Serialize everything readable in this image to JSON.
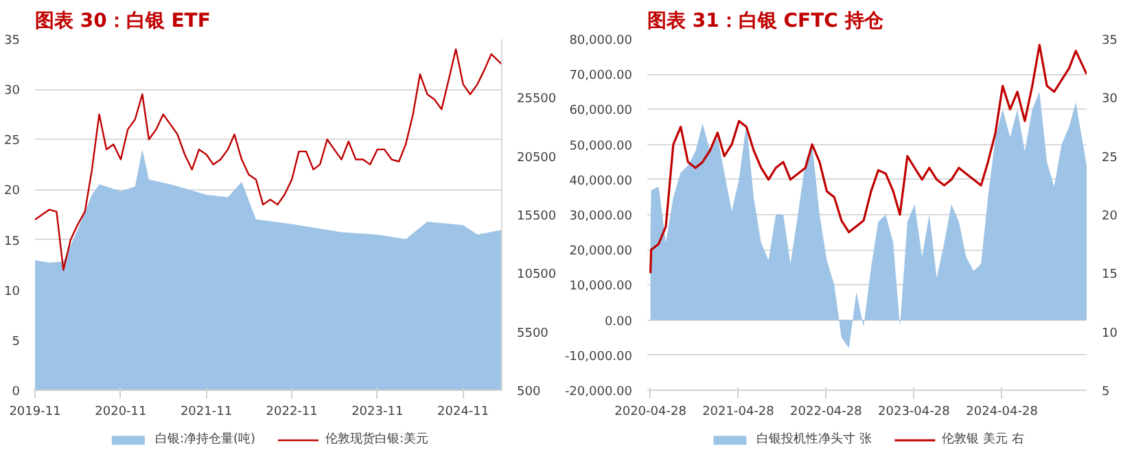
{
  "chart_data": [
    {
      "type": "line",
      "title": "图表 30：白银 ETF",
      "legend": "bottom",
      "grid": "y",
      "xlim": [
        "2019-11-01",
        "2025-04-15"
      ],
      "xticks": [
        "2019-11",
        "2020-11",
        "2021-11",
        "2022-11",
        "2023-11",
        "2024-11"
      ],
      "ylim": [
        0,
        35
      ],
      "yticks": [
        0,
        5,
        10,
        15,
        20,
        25,
        30,
        35
      ],
      "y2lim": [
        500,
        30500
      ],
      "y2ticks": [
        500,
        5500,
        10500,
        15500,
        20500,
        25500
      ],
      "series": [
        {
          "name": "白银:净持仓量(吨)",
          "type": "area",
          "axis": "y2",
          "color": "#9dc3e6",
          "x": [
            "2019-11",
            "2020-01",
            "2020-03",
            "2020-05",
            "2020-07",
            "2020-08",
            "2020-11",
            "2021-01",
            "2021-02",
            "2021-03",
            "2021-06",
            "2021-11",
            "2022-02",
            "2022-04",
            "2022-06",
            "2022-11",
            "2023-06",
            "2023-11",
            "2024-03",
            "2024-06",
            "2024-11",
            "2025-01",
            "2025-04-15"
          ],
          "values": [
            11600,
            11400,
            11500,
            14200,
            17200,
            18100,
            17500,
            17900,
            21100,
            18500,
            18100,
            17200,
            17000,
            18300,
            15100,
            14700,
            14000,
            13800,
            13400,
            14900,
            14600,
            13800,
            14200
          ]
        },
        {
          "name": "伦敦现货白银:美元",
          "type": "line",
          "color": "#c00000",
          "x": [
            "2019-11",
            "2019-12",
            "2020-01",
            "2020-02",
            "2020-03",
            "2020-04",
            "2020-05",
            "2020-06",
            "2020-07",
            "2020-08",
            "2020-09",
            "2020-10",
            "2020-11",
            "2020-12",
            "2021-01",
            "2021-02",
            "2021-03",
            "2021-04",
            "2021-05",
            "2021-06",
            "2021-07",
            "2021-08",
            "2021-09",
            "2021-10",
            "2021-11",
            "2021-12",
            "2022-01",
            "2022-02",
            "2022-03",
            "2022-04",
            "2022-05",
            "2022-06",
            "2022-07",
            "2022-08",
            "2022-09",
            "2022-10",
            "2022-11",
            "2022-12",
            "2023-01",
            "2023-02",
            "2023-03",
            "2023-04",
            "2023-05",
            "2023-06",
            "2023-07",
            "2023-08",
            "2023-09",
            "2023-10",
            "2023-11",
            "2023-12",
            "2024-01",
            "2024-02",
            "2024-03",
            "2024-04",
            "2024-05",
            "2024-06",
            "2024-07",
            "2024-08",
            "2024-09",
            "2024-10",
            "2024-11",
            "2024-12",
            "2025-01",
            "2025-02",
            "2025-03",
            "2025-04-15"
          ],
          "values": [
            17.0,
            17.5,
            18.0,
            17.8,
            12.0,
            15.0,
            16.5,
            17.8,
            22,
            27.5,
            24,
            24.5,
            23,
            26,
            27,
            29.5,
            25,
            26,
            27.5,
            26.5,
            25.5,
            23.5,
            22,
            24,
            23.5,
            22.5,
            23,
            24,
            25.5,
            23,
            21.5,
            21,
            18.5,
            19,
            18.5,
            19.5,
            21,
            23.8,
            23.8,
            22,
            22.5,
            25,
            24,
            23,
            24.8,
            23,
            23,
            22.5,
            24,
            24,
            23,
            22.8,
            24.5,
            27.5,
            31.5,
            29.5,
            29,
            28,
            31,
            34,
            30.5,
            29.5,
            30.5,
            32,
            33.5,
            32.5
          ]
        }
      ]
    },
    {
      "type": "line",
      "title": "图表 31：白银 CFTC 持仓",
      "legend": "bottom",
      "grid": "y",
      "xlim": [
        "2020-04-15",
        "2025-04-15"
      ],
      "xticks": [
        "2020-04-28",
        "2021-04-28",
        "2022-04-28",
        "2023-04-28",
        "2024-04-28"
      ],
      "ylim": [
        -20000,
        80000
      ],
      "yticks": [
        {
          "value": -20000,
          "label": "-20,000.00"
        },
        {
          "value": -10000,
          "label": "-10,000.00"
        },
        {
          "value": 0,
          "label": "0.00"
        },
        {
          "value": 10000,
          "label": "10,000.00"
        },
        {
          "value": 20000,
          "label": "20,000.00"
        },
        {
          "value": 30000,
          "label": "30,000.00"
        },
        {
          "value": 40000,
          "label": "40,000.00"
        },
        {
          "value": 50000,
          "label": "50,000.00"
        },
        {
          "value": 60000,
          "label": "60,000.00"
        },
        {
          "value": 70000,
          "label": "70,000.00"
        },
        {
          "value": 80000,
          "label": "80,000.00"
        }
      ],
      "y2lim": [
        5,
        35
      ],
      "y2ticks": [
        5,
        10,
        15,
        20,
        25,
        30,
        35
      ],
      "series": [
        {
          "name": "白银投机性净头寸 张",
          "type": "area",
          "color": "#9dc3e6",
          "x": [
            "2020-04-28",
            "2020-05",
            "2020-06",
            "2020-07",
            "2020-08",
            "2020-09",
            "2020-10",
            "2020-11",
            "2020-12",
            "2021-01",
            "2021-02",
            "2021-03",
            "2021-04",
            "2021-05",
            "2021-06",
            "2021-07",
            "2021-08",
            "2021-09",
            "2021-10",
            "2021-11",
            "2021-12",
            "2022-01",
            "2022-02",
            "2022-03",
            "2022-04",
            "2022-05",
            "2022-06",
            "2022-07",
            "2022-08",
            "2022-09",
            "2022-10",
            "2022-11",
            "2022-12",
            "2023-01",
            "2023-02",
            "2023-03",
            "2023-04",
            "2023-05",
            "2023-06",
            "2023-07",
            "2023-08",
            "2023-09",
            "2023-10",
            "2023-11",
            "2023-12",
            "2024-01",
            "2024-02",
            "2024-03",
            "2024-04",
            "2024-05",
            "2024-06",
            "2024-07",
            "2024-08",
            "2024-09",
            "2024-10",
            "2024-11",
            "2024-12",
            "2025-01",
            "2025-02",
            "2025-03",
            "2025-04-15"
          ],
          "values": [
            25000,
            37000,
            38000,
            22000,
            35000,
            42000,
            44000,
            48000,
            56000,
            48000,
            52000,
            42000,
            31000,
            40000,
            56000,
            35000,
            22000,
            17000,
            30000,
            30000,
            16000,
            30000,
            45000,
            50000,
            30000,
            17000,
            10000,
            -5000,
            -8000,
            8000,
            -2000,
            15000,
            28000,
            30000,
            22000,
            -2000,
            28000,
            33000,
            18000,
            30000,
            12000,
            22000,
            33000,
            28000,
            18000,
            14000,
            16000,
            35000,
            52000,
            60000,
            52000,
            60000,
            48000,
            60000,
            65000,
            45000,
            38000,
            50000,
            55000,
            62000,
            44000
          ]
        },
        {
          "name": "伦敦银 美元 右",
          "type": "line",
          "axis": "y2",
          "color": "#c00000",
          "x": [
            "2020-04-28",
            "2020-05",
            "2020-06",
            "2020-07",
            "2020-08",
            "2020-09",
            "2020-10",
            "2020-11",
            "2020-12",
            "2021-01",
            "2021-02",
            "2021-03",
            "2021-04",
            "2021-05",
            "2021-06",
            "2021-07",
            "2021-08",
            "2021-09",
            "2021-10",
            "2021-11",
            "2021-12",
            "2022-01",
            "2022-02",
            "2022-03",
            "2022-04",
            "2022-05",
            "2022-06",
            "2022-07",
            "2022-08",
            "2022-09",
            "2022-10",
            "2022-11",
            "2022-12",
            "2023-01",
            "2023-02",
            "2023-03",
            "2023-04",
            "2023-05",
            "2023-06",
            "2023-07",
            "2023-08",
            "2023-09",
            "2023-10",
            "2023-11",
            "2023-12",
            "2024-01",
            "2024-02",
            "2024-03",
            "2024-04",
            "2024-05",
            "2024-06",
            "2024-07",
            "2024-08",
            "2024-09",
            "2024-10",
            "2024-11",
            "2024-12",
            "2025-01",
            "2025-02",
            "2025-03",
            "2025-04-15"
          ],
          "values": [
            15,
            17,
            17.5,
            19,
            26,
            27.5,
            24.5,
            24,
            24.5,
            25.5,
            27,
            25,
            26,
            28,
            27.5,
            25.5,
            24,
            23,
            24,
            24.5,
            23,
            23.5,
            24,
            26,
            24.5,
            22,
            21.5,
            19.5,
            18.5,
            19,
            19.5,
            22,
            23.8,
            23.5,
            22,
            20,
            25,
            24,
            23,
            24,
            23,
            22.5,
            23,
            24,
            23.5,
            23,
            22.5,
            24.5,
            27,
            31,
            29,
            30.5,
            28,
            31,
            34.5,
            31,
            30.5,
            31.5,
            32.5,
            34,
            32
          ]
        }
      ]
    }
  ]
}
